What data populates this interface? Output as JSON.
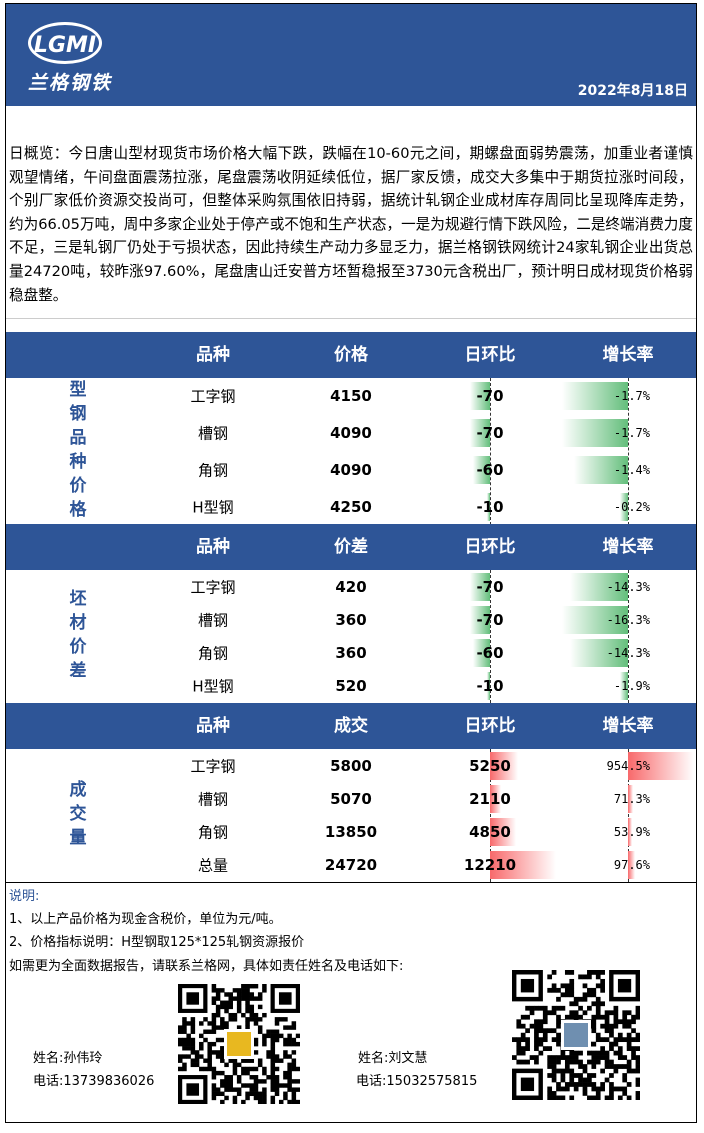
{
  "header": {
    "logo": "LGMI",
    "brand": "兰格钢铁",
    "date": "2022年8月18日"
  },
  "overview": "日概览：今日唐山型材现货市场价格大幅下跌，跌幅在10-60元之间，期螺盘面弱势震荡，加重业者谨慎观望情绪，午间盘面震荡拉涨，尾盘震荡收阴延续低位，据厂家反馈，成交大多集中于期货拉涨时间段，个别厂家低价资源交投尚可，但整体采购氛围依旧持弱，据统计轧钢企业成材库存周同比呈现降库走势，约为66.05万吨，周中多家企业处于停产或不饱和生产状态，一是为规避行情下跌风险，二是终端消费力度不足，三是轧钢厂仍处于亏损状态，因此持续生产动力多显乏力，据兰格钢铁网统计24家轧钢企业出货总量24720吨，较昨涨97.60%，尾盘唐山迁安普方坯暂稳报至3730元含税出厂，预计明日成材现货价格弱稳盘整。",
  "sections": [
    {
      "label": "型钢品种价格",
      "columns": [
        "品种",
        "价格",
        "日环比",
        "增长率"
      ],
      "rows": [
        {
          "name": "工字钢",
          "value": 4150,
          "change": -70,
          "growth": "-1.7%"
        },
        {
          "name": "槽钢",
          "value": 4090,
          "change": -70,
          "growth": "-1.7%"
        },
        {
          "name": "角钢",
          "value": 4090,
          "change": -60,
          "growth": "-1.4%"
        },
        {
          "name": "H型钢",
          "value": 4250,
          "change": -10,
          "growth": "-0.2%"
        }
      ]
    },
    {
      "label": "坯材价差",
      "columns": [
        "品种",
        "价差",
        "日环比",
        "增长率"
      ],
      "rows": [
        {
          "name": "工字钢",
          "value": 420,
          "change": -70,
          "growth": "-14.3%"
        },
        {
          "name": "槽钢",
          "value": 360,
          "change": -70,
          "growth": "-16.3%"
        },
        {
          "name": "角钢",
          "value": 360,
          "change": -60,
          "growth": "-14.3%"
        },
        {
          "name": "H型钢",
          "value": 520,
          "change": -10,
          "growth": "-1.9%"
        }
      ]
    },
    {
      "label": "成交量",
      "columns": [
        "品种",
        "成交",
        "日环比",
        "增长率"
      ],
      "rows": [
        {
          "name": "工字钢",
          "value": 5800,
          "change": 5250,
          "growth": "954.5%"
        },
        {
          "name": "槽钢",
          "value": 5070,
          "change": 2110,
          "growth": "71.3%"
        },
        {
          "name": "角钢",
          "value": 13850,
          "change": 4850,
          "growth": "53.9%"
        },
        {
          "name": "总量",
          "value": 24720,
          "change": 12210,
          "growth": "97.6%"
        }
      ]
    }
  ],
  "notes": {
    "title": "说明:",
    "items": [
      "1、以上产品价格为现金含税价，单位为元/吨。",
      "2、价格指标说明：H型钢取125*125轧钢资源报价"
    ],
    "contact_intro": "如需更为全面数据报告，请联系兰格网，具体如责任姓名及电话如下:"
  },
  "contacts": [
    {
      "name": "姓名:孙伟玲",
      "phone": "电话:13739836026"
    },
    {
      "name": "姓名:刘文慧",
      "phone": "电话:15032575815"
    }
  ]
}
